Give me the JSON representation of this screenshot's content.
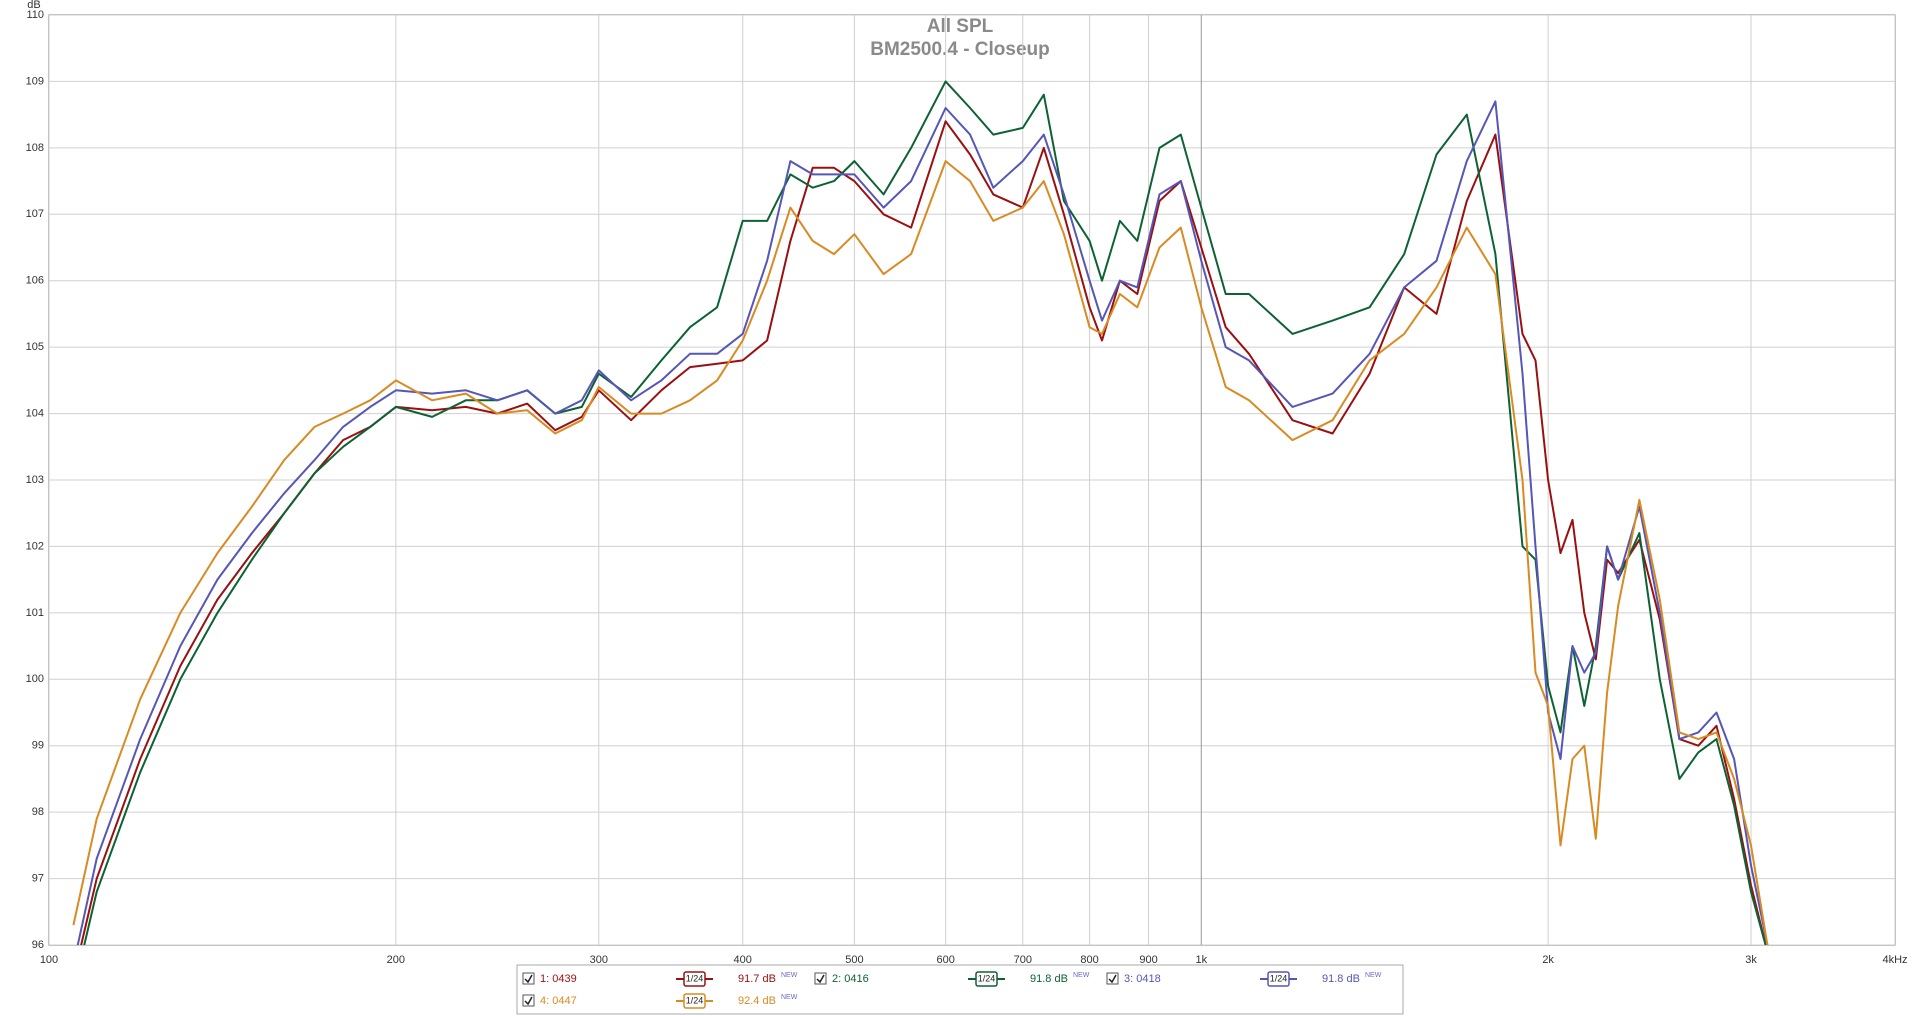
{
  "chart_data": {
    "type": "line",
    "title": "All SPL",
    "subtitle": "BM2500.4 - Closeup",
    "y_label": "dB",
    "log_x": true,
    "grid": true,
    "xlim": [
      100,
      4000
    ],
    "xticks": [
      100,
      200,
      300,
      400,
      500,
      600,
      700,
      800,
      900,
      {
        "value": 1000,
        "label": "1k"
      },
      {
        "value": 2000,
        "label": "2k"
      },
      {
        "value": 3000,
        "label": "3k"
      },
      {
        "value": 4000,
        "label": "4kHz"
      }
    ],
    "ylim": [
      96,
      110
    ],
    "yticks": [
      96,
      97,
      98,
      99,
      100,
      101,
      102,
      103,
      104,
      105,
      106,
      107,
      108,
      109,
      110
    ],
    "x": [
      105,
      110,
      120,
      130,
      140,
      150,
      160,
      170,
      180,
      190,
      200,
      215,
      230,
      245,
      260,
      275,
      290,
      300,
      320,
      340,
      360,
      380,
      400,
      420,
      440,
      460,
      480,
      500,
      530,
      560,
      600,
      630,
      660,
      700,
      730,
      760,
      800,
      820,
      850,
      880,
      920,
      960,
      1000,
      1050,
      1100,
      1200,
      1300,
      1400,
      1500,
      1600,
      1700,
      1800,
      1900,
      1950,
      2000,
      2050,
      2100,
      2150,
      2200,
      2250,
      2300,
      2400,
      2500,
      2600,
      2700,
      2800,
      2900,
      3000,
      3100
    ],
    "series": [
      {
        "name": "1: 0439",
        "color": "#9a1010",
        "smoothing": "1/24",
        "level": "91.7 dB",
        "badge": "NEW",
        "values": [
          95.5,
          97.0,
          98.8,
          100.2,
          101.2,
          101.9,
          102.5,
          103.1,
          103.6,
          103.8,
          104.1,
          104.05,
          104.1,
          104.0,
          104.15,
          103.75,
          103.95,
          104.35,
          103.9,
          104.35,
          104.7,
          104.75,
          104.8,
          105.1,
          106.6,
          107.7,
          107.7,
          107.5,
          107.0,
          106.8,
          108.4,
          107.9,
          107.3,
          107.1,
          108.0,
          107.0,
          105.6,
          105.1,
          106.0,
          105.8,
          107.2,
          107.5,
          106.5,
          105.3,
          104.9,
          103.9,
          103.7,
          104.6,
          105.9,
          105.5,
          107.2,
          108.2,
          105.2,
          104.8,
          103.0,
          101.9,
          102.4,
          101.0,
          100.3,
          101.8,
          101.6,
          102.1,
          100.9,
          99.1,
          99.0,
          99.3,
          98.2,
          96.9,
          95.9
        ]
      },
      {
        "name": "2: 0416",
        "color": "#0d6234",
        "smoothing": "1/24",
        "level": "91.8 dB",
        "badge": "NEW",
        "values": [
          95.3,
          96.8,
          98.6,
          100.0,
          101.0,
          101.8,
          102.5,
          103.1,
          103.5,
          103.8,
          104.1,
          103.95,
          104.2,
          104.2,
          104.35,
          104.0,
          104.1,
          104.6,
          104.25,
          104.8,
          105.3,
          105.6,
          106.9,
          106.9,
          107.6,
          107.4,
          107.5,
          107.8,
          107.3,
          108.0,
          109.0,
          108.6,
          108.2,
          108.3,
          108.8,
          107.2,
          106.6,
          106.0,
          106.9,
          106.6,
          108.0,
          108.2,
          107.1,
          105.8,
          105.8,
          105.2,
          105.4,
          105.6,
          106.4,
          107.9,
          108.5,
          106.4,
          102.0,
          101.8,
          99.9,
          99.2,
          100.5,
          99.6,
          100.5,
          102.0,
          101.5,
          102.2,
          100.0,
          98.5,
          98.9,
          99.1,
          98.1,
          96.8,
          95.9
        ]
      },
      {
        "name": "3: 0418",
        "color": "#5656b8",
        "smoothing": "1/24",
        "level": "91.8 dB",
        "badge": "NEW",
        "values": [
          95.7,
          97.3,
          99.1,
          100.5,
          101.5,
          102.2,
          102.8,
          103.3,
          103.8,
          104.1,
          104.35,
          104.3,
          104.35,
          104.2,
          104.35,
          104.0,
          104.2,
          104.65,
          104.2,
          104.5,
          104.9,
          104.9,
          105.2,
          106.3,
          107.8,
          107.6,
          107.6,
          107.6,
          107.1,
          107.5,
          108.6,
          108.2,
          107.4,
          107.8,
          108.2,
          107.3,
          106.0,
          105.4,
          106.0,
          105.9,
          107.3,
          107.5,
          106.3,
          105.0,
          104.8,
          104.1,
          104.3,
          104.9,
          105.9,
          106.3,
          107.8,
          108.7,
          104.6,
          102.0,
          99.5,
          98.8,
          100.5,
          100.1,
          100.4,
          102.0,
          101.5,
          102.6,
          101.0,
          99.1,
          99.2,
          99.5,
          98.8,
          97.2,
          96.0
        ]
      },
      {
        "name": "4: 0447",
        "color": "#d98a22",
        "smoothing": "1/24",
        "level": "92.4 dB",
        "badge": "NEW",
        "values": [
          96.3,
          97.9,
          99.7,
          101.0,
          101.9,
          102.6,
          103.3,
          103.8,
          104.0,
          104.2,
          104.5,
          104.2,
          104.3,
          104.0,
          104.05,
          103.7,
          103.9,
          104.4,
          104.0,
          104.0,
          104.2,
          104.5,
          105.1,
          106.0,
          107.1,
          106.6,
          106.4,
          106.7,
          106.1,
          106.4,
          107.8,
          107.5,
          106.9,
          107.1,
          107.5,
          106.7,
          105.3,
          105.2,
          105.8,
          105.6,
          106.5,
          106.8,
          105.6,
          104.4,
          104.2,
          103.6,
          103.9,
          104.8,
          105.2,
          105.9,
          106.8,
          106.1,
          103.0,
          100.1,
          99.6,
          97.5,
          98.8,
          99.0,
          97.6,
          99.8,
          101.1,
          102.7,
          101.2,
          99.2,
          99.1,
          99.2,
          98.5,
          97.5,
          96.0
        ]
      }
    ]
  }
}
